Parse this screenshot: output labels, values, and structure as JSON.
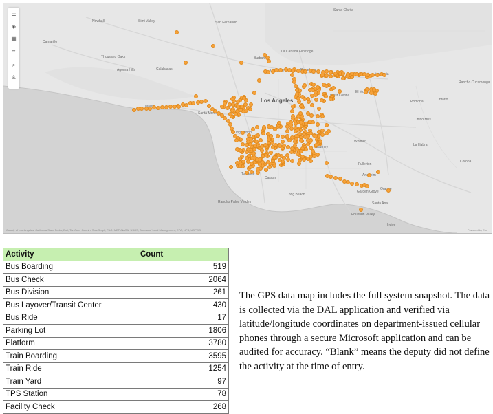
{
  "map": {
    "attribution": "County of Los Angeles, California State Parks, Esri, TomTom, Garmin, SafeGraph, FAO, METI/NASA, USGS, Bureau of Land Management, EPA, NPS, USFWS",
    "powered_by": "Powered by Esri",
    "toolbar_icons": [
      "menu-icon",
      "layers-icon",
      "grid-icon",
      "select-icon",
      "search-icon",
      "user-icon"
    ],
    "place_labels": {
      "los_angeles": "Los Angeles",
      "newhall": "Newhall",
      "santa_clarita": "Santa Clarita",
      "simi_valley": "Simi Valley",
      "san_fernando": "San Fernando",
      "camarillo": "Camarillo",
      "thousand_oaks": "Thousand Oaks",
      "agoura_hills": "Agoura Hills",
      "calabasas": "Calabasas",
      "burbank": "Burbank",
      "la_canada": "La Cañada Flintridge",
      "glendale": "Glendale",
      "pasadena": "Pasadena",
      "monrovia": "Monrovia",
      "west_covina": "West Covina",
      "el_monte": "El Monte",
      "malibu": "Malibu",
      "santa_monica": "Santa Monica",
      "inglewood": "Inglewood",
      "downey": "Downey",
      "whittier": "Whittier",
      "torrance": "Torrance",
      "carson": "Carson",
      "long_beach": "Long Beach",
      "anaheim": "Anaheim",
      "orange": "Orange",
      "garden_grove": "Garden Grove",
      "santa_ana": "Santa Ana",
      "irvine": "Irvine",
      "fullerton": "Fullerton",
      "la_habra": "La Habra",
      "pomona": "Pomona",
      "ontario": "Ontario",
      "chino_hills": "Chino Hills",
      "corona": "Corona",
      "palos_verdes": "Rancho Palos Verdes",
      "fountain_valley": "Fountain Valley",
      "rancho_cucamonga": "Rancho Cucamonga"
    }
  },
  "table": {
    "headers": {
      "activity": "Activity",
      "count": "Count"
    },
    "rows": [
      {
        "activity": "Bus Boarding",
        "count": "519"
      },
      {
        "activity": "Bus Check",
        "count": "2064"
      },
      {
        "activity": "Bus Division",
        "count": "261"
      },
      {
        "activity": "Bus Layover/Transit Center",
        "count": "430"
      },
      {
        "activity": "Bus Ride",
        "count": "17"
      },
      {
        "activity": "Parking Lot",
        "count": "1806"
      },
      {
        "activity": "Platform",
        "count": "3780"
      },
      {
        "activity": "Train Boarding",
        "count": "3595"
      },
      {
        "activity": "Train Ride",
        "count": "1254"
      },
      {
        "activity": "Train Yard",
        "count": "97"
      },
      {
        "activity": "TPS Station",
        "count": "78"
      },
      {
        "activity": "Facility Check",
        "count": "268"
      }
    ]
  },
  "description": "The GPS data map includes the full system snapshot. The data is collected via the DAL application and verified via latitude/longitude coordinates on department-issued cellular phones through a secure Microsoft application and can be audited for accuracy. “Blank” means the deputy did not define the activity at the time of entry.",
  "colors": {
    "header_bg": "#c6efb0",
    "marker": "#f6a23a",
    "water": "#d4d4d4",
    "land": "#e7e7e7"
  }
}
